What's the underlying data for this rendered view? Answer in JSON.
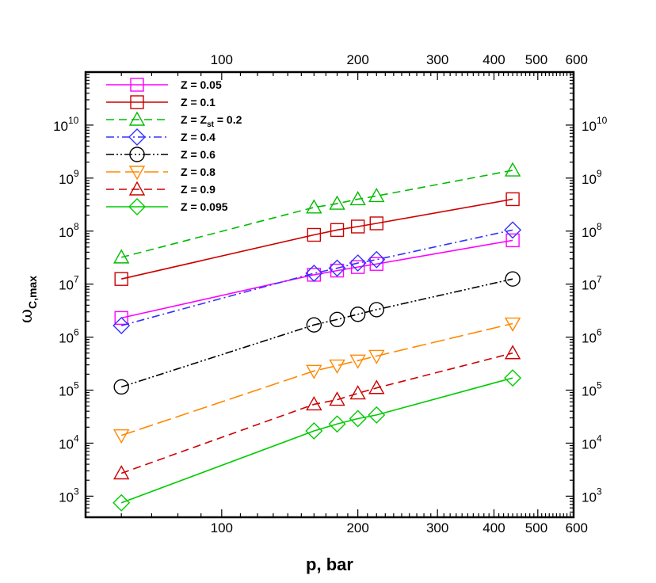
{
  "chart_data": {
    "type": "line",
    "xscale": "log",
    "yscale": "log",
    "xlabel": "p, bar",
    "ylabel_main": "ω",
    "ylabel_sub": "C,max",
    "xlim": [
      50,
      600
    ],
    "ylim": [
      400,
      100000000000
    ],
    "x_ticks": [
      {
        "value": 100,
        "label": "100"
      },
      {
        "value": 200,
        "label": "200"
      },
      {
        "value": 300,
        "label": "300"
      },
      {
        "value": 400,
        "label": "400"
      },
      {
        "value": 500,
        "label": "500"
      },
      {
        "value": 600,
        "label": "600"
      }
    ],
    "y_ticks": [
      {
        "value": 1000,
        "base": "10",
        "exp": "3"
      },
      {
        "value": 10000,
        "base": "10",
        "exp": "4"
      },
      {
        "value": 100000,
        "base": "10",
        "exp": "5"
      },
      {
        "value": 1000000,
        "base": "10",
        "exp": "6"
      },
      {
        "value": 10000000,
        "base": "10",
        "exp": "7"
      },
      {
        "value": 100000000,
        "base": "10",
        "exp": "8"
      },
      {
        "value": 1000000000,
        "base": "10",
        "exp": "9"
      },
      {
        "value": 10000000000,
        "base": "10",
        "exp": "10"
      }
    ],
    "legend_position": "top-left",
    "series": [
      {
        "name": "Z = 0.05",
        "label_main": "Z = 0.05",
        "color": "#ff00ff",
        "marker": "square",
        "dash": "",
        "x": [
          60,
          160,
          180,
          200,
          220,
          440
        ],
        "y": [
          2300000,
          15000000,
          18000000,
          21000000,
          24000000,
          67000000
        ]
      },
      {
        "name": "Z = 0.1",
        "label_main": "Z = 0.1",
        "color": "#cc0000",
        "marker": "square",
        "dash": "",
        "x": [
          60,
          160,
          180,
          200,
          220,
          440
        ],
        "y": [
          12500000,
          85000000,
          105000000,
          122000000,
          140000000,
          400000000
        ]
      },
      {
        "name": "Z = Zst = 0.2",
        "label_main": "Z = Z",
        "label_sub": "st",
        "label_tail": " = 0.2",
        "color": "#00bb00",
        "marker": "triangle-up",
        "dash": "10,6",
        "x": [
          60,
          160,
          180,
          200,
          220,
          440
        ],
        "y": [
          32000000,
          280000000,
          330000000,
          400000000,
          460000000,
          1400000000
        ]
      },
      {
        "name": "Z = 0.4",
        "label_main": "Z = 0.4",
        "color": "#3333ff",
        "marker": "diamond",
        "dash": "10,4,2,4",
        "x": [
          60,
          160,
          180,
          200,
          220,
          440
        ],
        "y": [
          1650000,
          16000000,
          20000000,
          25000000,
          29000000,
          105000000
        ]
      },
      {
        "name": "Z = 0.6",
        "label_main": "Z = 0.6",
        "color": "#000000",
        "marker": "circle",
        "dash": "10,3,2,3,2,3",
        "x": [
          60,
          160,
          180,
          200,
          220,
          440
        ],
        "y": [
          115000,
          1700000,
          2150000,
          2700000,
          3300000,
          12500000
        ]
      },
      {
        "name": "Z = 0.8",
        "label_main": "Z = 0.8",
        "color": "#ff8800",
        "marker": "triangle-down",
        "dash": "18,6",
        "x": [
          60,
          160,
          180,
          200,
          220,
          440
        ],
        "y": [
          14000,
          230000,
          290000,
          360000,
          440000,
          1800000
        ]
      },
      {
        "name": "Z = 0.9",
        "label_main": "Z = 0.9",
        "color": "#cc0000",
        "marker": "triangle-up",
        "dash": "10,6",
        "x": [
          60,
          160,
          180,
          200,
          220,
          440
        ],
        "y": [
          2700,
          54000,
          66000,
          87000,
          110000,
          500000
        ]
      },
      {
        "name": "Z = 0.095",
        "label_main": "Z = 0.095",
        "color": "#00cc00",
        "marker": "diamond",
        "dash": "",
        "x": [
          60,
          160,
          180,
          200,
          220,
          440
        ],
        "y": [
          750,
          17000,
          23000,
          29000,
          34000,
          170000
        ]
      }
    ]
  }
}
